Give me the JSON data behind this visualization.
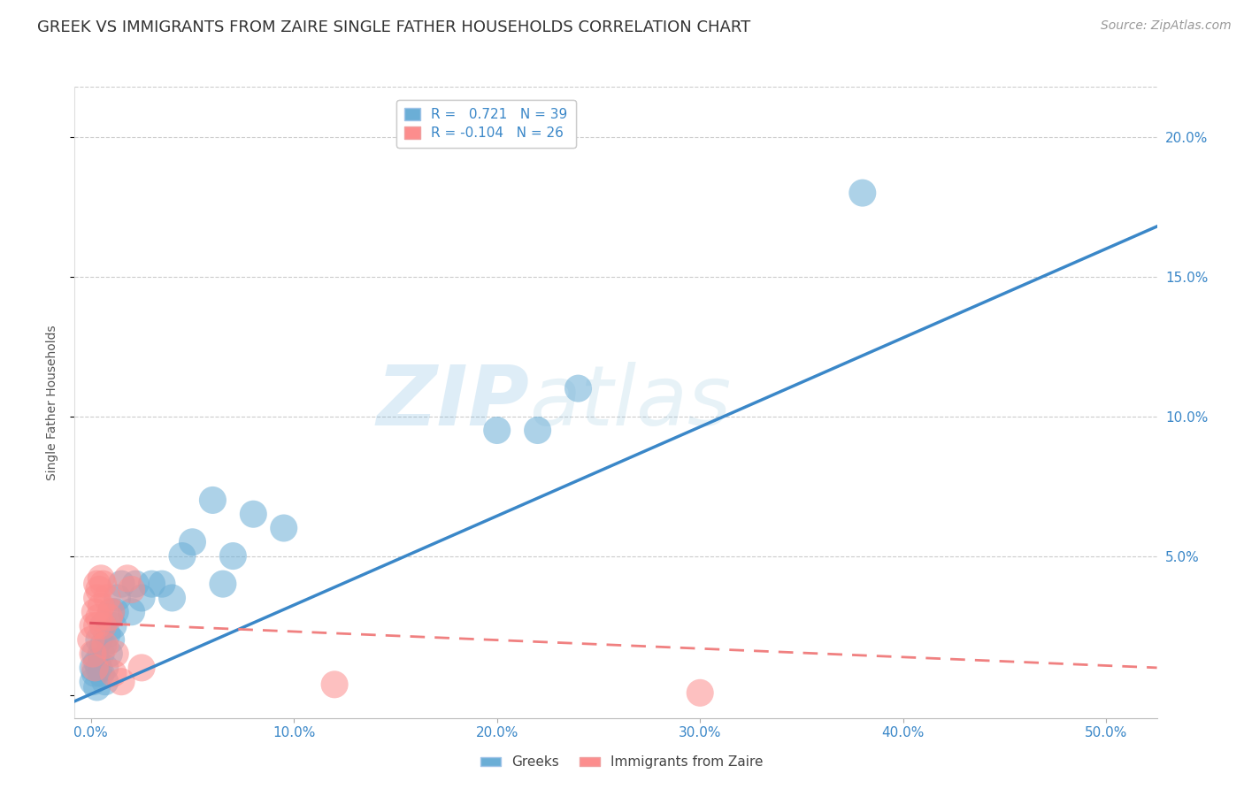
{
  "title": "GREEK VS IMMIGRANTS FROM ZAIRE SINGLE FATHER HOUSEHOLDS CORRELATION CHART",
  "source": "Source: ZipAtlas.com",
  "ylabel": "Single Father Households",
  "x_ticks": [
    0.0,
    0.1,
    0.2,
    0.3,
    0.4,
    0.5
  ],
  "x_tick_labels": [
    "0.0%",
    "10.0%",
    "20.0%",
    "30.0%",
    "40.0%",
    "50.0%"
  ],
  "y_ticks": [
    0.0,
    0.05,
    0.1,
    0.15,
    0.2
  ],
  "y_tick_labels_right": [
    "",
    "5.0%",
    "10.0%",
    "15.0%",
    "20.0%"
  ],
  "xlim": [
    -0.008,
    0.525
  ],
  "ylim": [
    -0.008,
    0.218
  ],
  "color_greek": "#6baed6",
  "color_zaire": "#fc8d8d",
  "greek_scatter_x": [
    0.001,
    0.001,
    0.002,
    0.002,
    0.003,
    0.003,
    0.004,
    0.004,
    0.005,
    0.005,
    0.006,
    0.006,
    0.007,
    0.007,
    0.008,
    0.009,
    0.01,
    0.01,
    0.011,
    0.012,
    0.013,
    0.015,
    0.02,
    0.022,
    0.025,
    0.03,
    0.035,
    0.04,
    0.045,
    0.05,
    0.06,
    0.065,
    0.07,
    0.08,
    0.095,
    0.2,
    0.22,
    0.24,
    0.38
  ],
  "greek_scatter_y": [
    0.005,
    0.01,
    0.008,
    0.015,
    0.012,
    0.003,
    0.01,
    0.02,
    0.008,
    0.015,
    0.018,
    0.025,
    0.01,
    0.005,
    0.022,
    0.015,
    0.02,
    0.03,
    0.025,
    0.03,
    0.035,
    0.04,
    0.03,
    0.04,
    0.035,
    0.04,
    0.04,
    0.035,
    0.05,
    0.055,
    0.07,
    0.04,
    0.05,
    0.065,
    0.06,
    0.095,
    0.095,
    0.11,
    0.18
  ],
  "zaire_scatter_x": [
    0.0,
    0.001,
    0.001,
    0.002,
    0.002,
    0.003,
    0.003,
    0.003,
    0.004,
    0.004,
    0.005,
    0.005,
    0.006,
    0.006,
    0.007,
    0.008,
    0.009,
    0.01,
    0.011,
    0.012,
    0.015,
    0.018,
    0.02,
    0.025,
    0.12,
    0.3
  ],
  "zaire_scatter_y": [
    0.02,
    0.025,
    0.015,
    0.03,
    0.01,
    0.04,
    0.035,
    0.025,
    0.038,
    0.028,
    0.042,
    0.032,
    0.04,
    0.025,
    0.018,
    0.035,
    0.028,
    0.03,
    0.008,
    0.015,
    0.005,
    0.042,
    0.038,
    0.01,
    0.004,
    0.001
  ],
  "greek_line_x": [
    -0.008,
    0.525
  ],
  "greek_line_y": [
    -0.002,
    0.168
  ],
  "zaire_line_x": [
    0.0,
    0.525
  ],
  "zaire_line_y": [
    0.026,
    0.01
  ],
  "watermark_zip": "ZIP",
  "watermark_atlas": "atlas",
  "title_fontsize": 13,
  "legend_fontsize": 11,
  "axis_label_fontsize": 10,
  "tick_fontsize": 11,
  "source_fontsize": 10,
  "scatter_size": 500,
  "background_color": "#ffffff",
  "grid_color": "#cccccc"
}
